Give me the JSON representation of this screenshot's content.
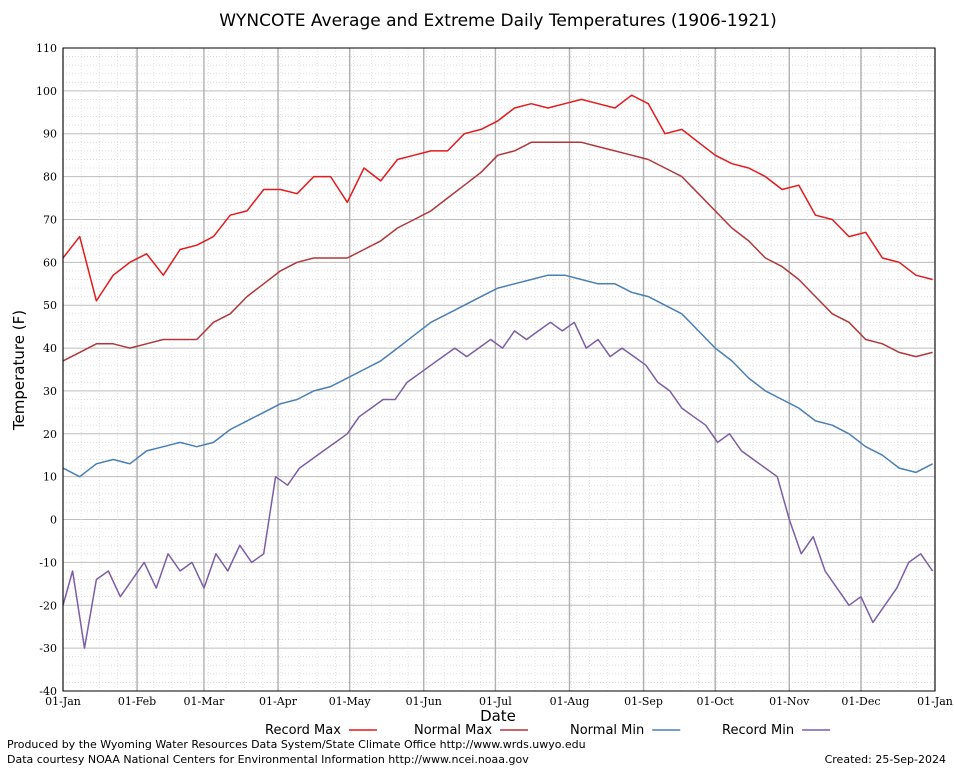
{
  "chart_data": {
    "type": "line",
    "title": "WYNCOTE Average and Extreme Daily Temperatures (1906-1921)",
    "xlabel": "Date",
    "ylabel": "Temperature (F)",
    "ylim": [
      -40,
      110
    ],
    "y_ticks": [
      -40,
      -30,
      -20,
      -10,
      0,
      10,
      20,
      30,
      40,
      50,
      60,
      70,
      80,
      90,
      100,
      110
    ],
    "x_ticks": [
      "01-Jan",
      "01-Feb",
      "01-Mar",
      "01-Apr",
      "01-May",
      "01-Jun",
      "01-Jul",
      "01-Aug",
      "01-Sep",
      "01-Oct",
      "01-Nov",
      "01-Dec",
      "01-Jan"
    ],
    "x_tick_days": [
      1,
      32,
      60,
      91,
      121,
      152,
      182,
      213,
      244,
      274,
      305,
      335,
      366
    ],
    "grid": true,
    "legend_position": "bottom",
    "series": [
      {
        "name": "Record Max",
        "color": "#e41a1c",
        "days": [
          1,
          8,
          15,
          22,
          29,
          36,
          43,
          50,
          57,
          64,
          71,
          78,
          85,
          92,
          99,
          106,
          113,
          120,
          127,
          134,
          141,
          148,
          155,
          162,
          169,
          176,
          183,
          190,
          197,
          204,
          211,
          218,
          225,
          232,
          239,
          246,
          253,
          260,
          267,
          274,
          281,
          288,
          295,
          302,
          309,
          316,
          323,
          330,
          337,
          344,
          351,
          358,
          365
        ],
        "values": [
          61,
          66,
          51,
          57,
          60,
          62,
          57,
          63,
          64,
          66,
          71,
          72,
          77,
          77,
          76,
          80,
          80,
          74,
          82,
          79,
          84,
          85,
          86,
          86,
          90,
          91,
          93,
          96,
          97,
          96,
          97,
          98,
          97,
          96,
          99,
          97,
          90,
          91,
          88,
          85,
          83,
          82,
          80,
          77,
          78,
          71,
          70,
          66,
          67,
          61,
          60,
          57,
          56
        ]
      },
      {
        "name": "Normal Max",
        "color": "#b2373a",
        "days": [
          1,
          8,
          15,
          22,
          29,
          36,
          43,
          50,
          57,
          64,
          71,
          78,
          85,
          92,
          99,
          106,
          113,
          120,
          127,
          134,
          141,
          148,
          155,
          162,
          169,
          176,
          183,
          190,
          197,
          204,
          211,
          218,
          225,
          232,
          239,
          246,
          253,
          260,
          267,
          274,
          281,
          288,
          295,
          302,
          309,
          316,
          323,
          330,
          337,
          344,
          351,
          358,
          365
        ],
        "values": [
          37,
          39,
          41,
          41,
          40,
          41,
          42,
          42,
          42,
          46,
          48,
          52,
          55,
          58,
          60,
          61,
          61,
          61,
          63,
          65,
          68,
          70,
          72,
          75,
          78,
          81,
          85,
          86,
          88,
          88,
          88,
          88,
          87,
          86,
          85,
          84,
          82,
          80,
          76,
          72,
          68,
          65,
          61,
          59,
          56,
          52,
          48,
          46,
          42,
          41,
          39,
          38,
          39
        ]
      },
      {
        "name": "Normal Min",
        "color": "#4a7fb5",
        "days": [
          1,
          8,
          15,
          22,
          29,
          36,
          43,
          50,
          57,
          64,
          71,
          78,
          85,
          92,
          99,
          106,
          113,
          120,
          127,
          134,
          141,
          148,
          155,
          162,
          169,
          176,
          183,
          190,
          197,
          204,
          211,
          218,
          225,
          232,
          239,
          246,
          253,
          260,
          267,
          274,
          281,
          288,
          295,
          302,
          309,
          316,
          323,
          330,
          337,
          344,
          351,
          358,
          365
        ],
        "values": [
          12,
          10,
          13,
          14,
          13,
          16,
          17,
          18,
          17,
          18,
          21,
          23,
          25,
          27,
          28,
          30,
          31,
          33,
          35,
          37,
          40,
          43,
          46,
          48,
          50,
          52,
          54,
          55,
          56,
          57,
          57,
          56,
          55,
          55,
          53,
          52,
          50,
          48,
          44,
          40,
          37,
          33,
          30,
          28,
          26,
          23,
          22,
          20,
          17,
          15,
          12,
          11,
          13
        ]
      },
      {
        "name": "Record Min",
        "color": "#7b5ea7",
        "days": [
          1,
          5,
          10,
          15,
          20,
          25,
          30,
          35,
          40,
          45,
          50,
          55,
          60,
          65,
          70,
          75,
          80,
          85,
          90,
          95,
          100,
          105,
          110,
          115,
          120,
          125,
          130,
          135,
          140,
          145,
          150,
          155,
          160,
          165,
          170,
          175,
          180,
          185,
          190,
          195,
          200,
          205,
          210,
          215,
          220,
          225,
          230,
          235,
          240,
          245,
          250,
          255,
          260,
          265,
          270,
          275,
          280,
          285,
          290,
          295,
          300,
          305,
          310,
          315,
          320,
          325,
          330,
          335,
          340,
          345,
          350,
          355,
          360,
          365
        ],
        "values": [
          -20,
          -12,
          -30,
          -14,
          -12,
          -18,
          -14,
          -10,
          -16,
          -8,
          -12,
          -10,
          -16,
          -8,
          -12,
          -6,
          -10,
          -8,
          10,
          8,
          12,
          14,
          16,
          18,
          20,
          24,
          26,
          28,
          28,
          32,
          34,
          36,
          38,
          40,
          38,
          40,
          42,
          40,
          44,
          42,
          44,
          46,
          44,
          46,
          40,
          42,
          38,
          40,
          38,
          36,
          32,
          30,
          26,
          24,
          22,
          18,
          20,
          16,
          14,
          12,
          10,
          0,
          -8,
          -4,
          -12,
          -16,
          -20,
          -18,
          -24,
          -20,
          -16,
          -10,
          -8,
          -12
        ]
      }
    ]
  },
  "credits": {
    "produced_by": "Produced by the Wyoming Water Resources Data System/State Climate Office http://www.wrds.uwyo.edu",
    "data_courtesy": "Data courtesy NOAA National Centers for Environmental Information http://www.ncei.noaa.gov",
    "created": "Created:  25-Sep-2024"
  }
}
